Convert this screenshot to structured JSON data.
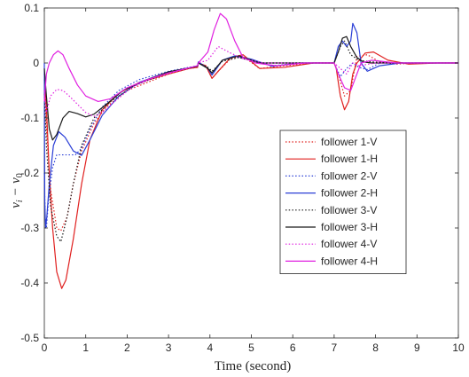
{
  "chart_data": {
    "type": "line",
    "xlabel": "Time (second)",
    "ylabel_main": "v",
    "ylabel_sub1": "i",
    "ylabel_minus": "−",
    "ylabel_main2": "v",
    "ylabel_sub2": "0",
    "xlim": [
      0,
      10
    ],
    "ylim": [
      -0.5,
      0.1
    ],
    "xticks": [
      "0",
      "1",
      "2",
      "3",
      "4",
      "5",
      "6",
      "7",
      "8",
      "9",
      "10"
    ],
    "yticks": [
      "-0.5",
      "-0.4",
      "-0.3",
      "-0.2",
      "-0.1",
      "0",
      "0.1"
    ],
    "grid": false,
    "legend_position": "center-right",
    "series": [
      {
        "name": "follower 1-V",
        "color": "#e0201f",
        "dash": "dotted",
        "points": [
          [
            0,
            -0.03
          ],
          [
            0.05,
            -0.12
          ],
          [
            0.15,
            -0.23
          ],
          [
            0.3,
            -0.3
          ],
          [
            0.4,
            -0.305
          ],
          [
            0.55,
            -0.28
          ],
          [
            0.7,
            -0.22
          ],
          [
            0.9,
            -0.16
          ],
          [
            1.2,
            -0.11
          ],
          [
            1.5,
            -0.08
          ],
          [
            2,
            -0.05
          ],
          [
            2.5,
            -0.035
          ],
          [
            3,
            -0.02
          ],
          [
            3.5,
            -0.01
          ],
          [
            3.7,
            -0.008
          ],
          [
            3.72,
            0.0
          ],
          [
            3.9,
            -0.005
          ],
          [
            4.05,
            -0.028
          ],
          [
            4.2,
            -0.015
          ],
          [
            4.5,
            0.008
          ],
          [
            4.8,
            0.012
          ],
          [
            5.2,
            -0.01
          ],
          [
            5.8,
            -0.005
          ],
          [
            6.5,
            0.0
          ],
          [
            7.0,
            0.0
          ],
          [
            7.1,
            -0.02
          ],
          [
            7.25,
            -0.06
          ],
          [
            7.4,
            -0.05
          ],
          [
            7.55,
            0.012
          ],
          [
            7.8,
            0.015
          ],
          [
            8.1,
            0.002
          ],
          [
            8.5,
            -0.002
          ],
          [
            9,
            0.0
          ],
          [
            10,
            0.0
          ]
        ]
      },
      {
        "name": "follower 1-H",
        "color": "#e0201f",
        "dash": "solid",
        "points": [
          [
            0,
            -0.02
          ],
          [
            0.05,
            -0.08
          ],
          [
            0.12,
            -0.2
          ],
          [
            0.2,
            -0.3
          ],
          [
            0.3,
            -0.38
          ],
          [
            0.42,
            -0.41
          ],
          [
            0.52,
            -0.395
          ],
          [
            0.7,
            -0.32
          ],
          [
            0.9,
            -0.22
          ],
          [
            1.1,
            -0.14
          ],
          [
            1.4,
            -0.085
          ],
          [
            1.8,
            -0.055
          ],
          [
            2.3,
            -0.035
          ],
          [
            3,
            -0.02
          ],
          [
            3.5,
            -0.01
          ],
          [
            3.7,
            -0.008
          ],
          [
            3.72,
            0.0
          ],
          [
            3.9,
            -0.005
          ],
          [
            4.05,
            -0.028
          ],
          [
            4.2,
            -0.015
          ],
          [
            4.5,
            0.01
          ],
          [
            4.8,
            0.015
          ],
          [
            5.2,
            -0.01
          ],
          [
            5.8,
            -0.008
          ],
          [
            6.5,
            0.0
          ],
          [
            7.0,
            0.0
          ],
          [
            7.05,
            -0.01
          ],
          [
            7.15,
            -0.06
          ],
          [
            7.25,
            -0.085
          ],
          [
            7.35,
            -0.07
          ],
          [
            7.45,
            -0.02
          ],
          [
            7.55,
            0.0
          ],
          [
            7.75,
            0.018
          ],
          [
            7.95,
            0.02
          ],
          [
            8.3,
            0.005
          ],
          [
            8.8,
            -0.002
          ],
          [
            9.5,
            0.0
          ],
          [
            10,
            0.0
          ]
        ]
      },
      {
        "name": "follower 2-V",
        "color": "#2b3fd6",
        "dash": "dotted",
        "points": [
          [
            0,
            -0.2
          ],
          [
            0.02,
            -0.28
          ],
          [
            0.05,
            -0.3
          ],
          [
            0.1,
            -0.25
          ],
          [
            0.2,
            -0.19
          ],
          [
            0.3,
            -0.167
          ],
          [
            0.45,
            -0.167
          ],
          [
            0.6,
            -0.167
          ],
          [
            0.75,
            -0.167
          ],
          [
            0.9,
            -0.155
          ],
          [
            1.1,
            -0.12
          ],
          [
            1.4,
            -0.08
          ],
          [
            1.8,
            -0.05
          ],
          [
            2.3,
            -0.03
          ],
          [
            3,
            -0.015
          ],
          [
            3.7,
            -0.005
          ],
          [
            3.72,
            0.002
          ],
          [
            3.95,
            -0.01
          ],
          [
            4.05,
            -0.02
          ],
          [
            4.3,
            0.005
          ],
          [
            4.6,
            0.012
          ],
          [
            5.0,
            0.006
          ],
          [
            5.5,
            -0.005
          ],
          [
            6.2,
            0.0
          ],
          [
            7.0,
            0.0
          ],
          [
            7.15,
            -0.025
          ],
          [
            7.3,
            -0.01
          ],
          [
            7.45,
            0.0
          ],
          [
            7.6,
            -0.008
          ],
          [
            7.8,
            -0.012
          ],
          [
            8.1,
            0.0
          ],
          [
            8.6,
            0.0
          ],
          [
            10,
            0.0
          ]
        ]
      },
      {
        "name": "follower 2-H",
        "color": "#2b3fd6",
        "dash": "solid",
        "points": [
          [
            0,
            -0.0
          ],
          [
            0.01,
            -0.25
          ],
          [
            0.03,
            -0.3
          ],
          [
            0.06,
            -0.28
          ],
          [
            0.12,
            -0.22
          ],
          [
            0.22,
            -0.15
          ],
          [
            0.35,
            -0.125
          ],
          [
            0.5,
            -0.135
          ],
          [
            0.7,
            -0.16
          ],
          [
            0.9,
            -0.168
          ],
          [
            1.1,
            -0.14
          ],
          [
            1.4,
            -0.095
          ],
          [
            1.8,
            -0.06
          ],
          [
            2.3,
            -0.035
          ],
          [
            3,
            -0.016
          ],
          [
            3.7,
            -0.006
          ],
          [
            3.72,
            0.002
          ],
          [
            3.95,
            -0.01
          ],
          [
            4.05,
            -0.022
          ],
          [
            4.3,
            0.005
          ],
          [
            4.6,
            0.013
          ],
          [
            5.0,
            0.007
          ],
          [
            5.5,
            -0.006
          ],
          [
            6.2,
            0.0
          ],
          [
            7.0,
            0.0
          ],
          [
            7.1,
            0.03
          ],
          [
            7.2,
            0.04
          ],
          [
            7.3,
            0.03
          ],
          [
            7.4,
            0.04
          ],
          [
            7.45,
            0.072
          ],
          [
            7.55,
            0.055
          ],
          [
            7.65,
            0.0
          ],
          [
            7.8,
            -0.015
          ],
          [
            8.1,
            -0.005
          ],
          [
            8.6,
            0.0
          ],
          [
            10,
            0.0
          ]
        ]
      },
      {
        "name": "follower 3-V",
        "color": "#1a1a1a",
        "dash": "dotted",
        "points": [
          [
            0,
            -0.05
          ],
          [
            0.05,
            -0.15
          ],
          [
            0.15,
            -0.26
          ],
          [
            0.3,
            -0.315
          ],
          [
            0.4,
            -0.325
          ],
          [
            0.55,
            -0.28
          ],
          [
            0.7,
            -0.22
          ],
          [
            0.9,
            -0.15
          ],
          [
            1.2,
            -0.1
          ],
          [
            1.6,
            -0.07
          ],
          [
            2.2,
            -0.04
          ],
          [
            3,
            -0.018
          ],
          [
            3.7,
            -0.006
          ],
          [
            3.72,
            0.0
          ],
          [
            3.95,
            -0.008
          ],
          [
            4.05,
            -0.015
          ],
          [
            4.3,
            0.003
          ],
          [
            4.7,
            0.01
          ],
          [
            5.2,
            0.0
          ],
          [
            6,
            0.0
          ],
          [
            7.0,
            0.0
          ],
          [
            7.15,
            0.03
          ],
          [
            7.25,
            0.04
          ],
          [
            7.4,
            0.015
          ],
          [
            7.6,
            0.005
          ],
          [
            7.9,
            0.002
          ],
          [
            8.5,
            0.0
          ],
          [
            10,
            0.0
          ]
        ]
      },
      {
        "name": "follower 3-H",
        "color": "#1a1a1a",
        "dash": "solid",
        "points": [
          [
            0,
            -0.01
          ],
          [
            0.05,
            -0.06
          ],
          [
            0.12,
            -0.12
          ],
          [
            0.2,
            -0.14
          ],
          [
            0.3,
            -0.13
          ],
          [
            0.45,
            -0.1
          ],
          [
            0.6,
            -0.088
          ],
          [
            0.8,
            -0.092
          ],
          [
            1.0,
            -0.098
          ],
          [
            1.2,
            -0.093
          ],
          [
            1.5,
            -0.075
          ],
          [
            1.9,
            -0.05
          ],
          [
            2.5,
            -0.03
          ],
          [
            3,
            -0.016
          ],
          [
            3.7,
            -0.006
          ],
          [
            3.72,
            0.0
          ],
          [
            3.95,
            -0.01
          ],
          [
            4.05,
            -0.018
          ],
          [
            4.3,
            0.005
          ],
          [
            4.7,
            0.013
          ],
          [
            5.2,
            0.0
          ],
          [
            6,
            0.0
          ],
          [
            7.0,
            0.0
          ],
          [
            7.1,
            0.02
          ],
          [
            7.2,
            0.045
          ],
          [
            7.3,
            0.048
          ],
          [
            7.4,
            0.03
          ],
          [
            7.55,
            0.01
          ],
          [
            7.7,
            0.002
          ],
          [
            7.9,
            0.0
          ],
          [
            8.5,
            0.0
          ],
          [
            10,
            0.0
          ]
        ]
      },
      {
        "name": "follower 4-V",
        "color": "#e020e0",
        "dash": "dotted",
        "points": [
          [
            0,
            -0.05
          ],
          [
            0.05,
            -0.09
          ],
          [
            0.15,
            -0.06
          ],
          [
            0.3,
            -0.048
          ],
          [
            0.45,
            -0.05
          ],
          [
            0.6,
            -0.06
          ],
          [
            0.8,
            -0.075
          ],
          [
            1.0,
            -0.09
          ],
          [
            1.2,
            -0.097
          ],
          [
            1.4,
            -0.09
          ],
          [
            1.7,
            -0.07
          ],
          [
            2.1,
            -0.045
          ],
          [
            2.6,
            -0.028
          ],
          [
            3.2,
            -0.015
          ],
          [
            3.7,
            -0.005
          ],
          [
            3.72,
            0.0
          ],
          [
            3.95,
            0.005
          ],
          [
            4.2,
            0.03
          ],
          [
            4.5,
            0.018
          ],
          [
            4.8,
            0.008
          ],
          [
            5.3,
            0.0
          ],
          [
            6,
            0.0
          ],
          [
            7.0,
            0.0
          ],
          [
            7.15,
            -0.01
          ],
          [
            7.3,
            -0.02
          ],
          [
            7.45,
            0.0
          ],
          [
            7.6,
            -0.005
          ],
          [
            8,
            0.0
          ],
          [
            10,
            0.0
          ]
        ]
      },
      {
        "name": "follower 4-H",
        "color": "#e020e0",
        "dash": "solid",
        "points": [
          [
            0,
            -0.07
          ],
          [
            0.05,
            -0.02
          ],
          [
            0.12,
            0.0
          ],
          [
            0.22,
            0.015
          ],
          [
            0.33,
            0.022
          ],
          [
            0.45,
            0.015
          ],
          [
            0.6,
            -0.01
          ],
          [
            0.8,
            -0.04
          ],
          [
            1.0,
            -0.06
          ],
          [
            1.3,
            -0.07
          ],
          [
            1.6,
            -0.065
          ],
          [
            2.0,
            -0.045
          ],
          [
            2.5,
            -0.03
          ],
          [
            3,
            -0.018
          ],
          [
            3.7,
            -0.005
          ],
          [
            3.72,
            0.0
          ],
          [
            3.95,
            0.02
          ],
          [
            4.1,
            0.06
          ],
          [
            4.25,
            0.09
          ],
          [
            4.4,
            0.08
          ],
          [
            4.6,
            0.04
          ],
          [
            4.8,
            0.01
          ],
          [
            5.1,
            0.0
          ],
          [
            5.6,
            -0.005
          ],
          [
            6.3,
            0.0
          ],
          [
            7.0,
            0.0
          ],
          [
            7.1,
            -0.02
          ],
          [
            7.25,
            -0.045
          ],
          [
            7.4,
            -0.05
          ],
          [
            7.5,
            -0.03
          ],
          [
            7.65,
            0.0
          ],
          [
            7.9,
            0.005
          ],
          [
            8.5,
            0.0
          ],
          [
            10,
            0.0
          ]
        ]
      }
    ]
  }
}
